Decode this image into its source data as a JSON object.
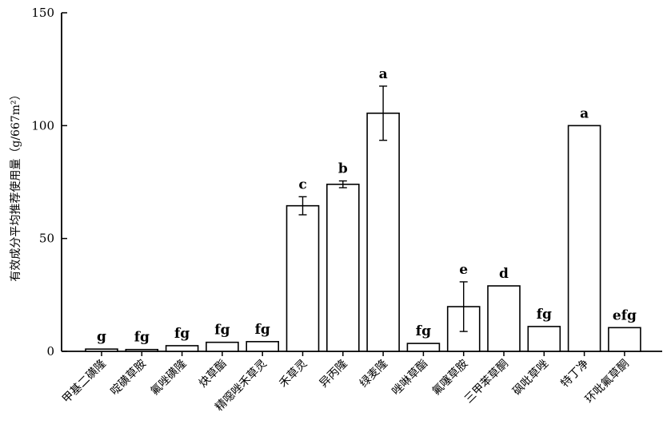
{
  "chart_data": {
    "type": "bar",
    "title": "",
    "xlabel": "",
    "ylabel": "有效成分平均推荐使用量（g/667m²）",
    "ylim": [
      0,
      150
    ],
    "yticks": [
      0,
      50,
      100,
      150
    ],
    "grid": false,
    "bar_fill": "#ffffff",
    "bar_stroke": "#000000",
    "categories": [
      "甲基二磺隆",
      "啶磺草胺",
      "氟唑磺隆",
      "炔草酯",
      "精噁唑禾草灵",
      "禾草灵",
      "异丙隆",
      "绿麦隆",
      "唑啉草酯",
      "氟噻草胺",
      "三甲苯草酮",
      "砜吡草唑",
      "特丁净",
      "环吡氟草酮"
    ],
    "values": [
      1,
      0.8,
      2.5,
      4,
      4.3,
      64.5,
      74,
      105.5,
      3.5,
      19.8,
      29,
      11,
      100,
      10.5
    ],
    "errors": [
      0,
      0,
      0,
      0,
      0,
      4,
      1.5,
      12,
      0,
      11,
      0,
      0,
      0,
      0
    ],
    "significance": [
      "g",
      "fg",
      "fg",
      "fg",
      "fg",
      "c",
      "b",
      "a",
      "fg",
      "e",
      "d",
      "fg",
      "a",
      "efg"
    ]
  }
}
